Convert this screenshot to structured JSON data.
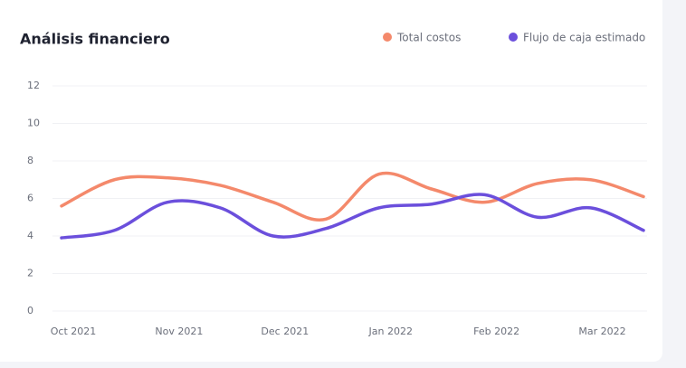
{
  "chart_data": {
    "type": "line",
    "title": "Análisis financiero",
    "categories": [
      "Oct 2021",
      null,
      "Nov 2021",
      null,
      "Dec 2021",
      null,
      "Jan 2022",
      null,
      "Feb 2022",
      null,
      "Mar 2022",
      null
    ],
    "series": [
      {
        "name": "Total costos",
        "color": "#f4896b",
        "values": [
          5.6,
          7.0,
          7.1,
          6.7,
          5.8,
          4.9,
          7.3,
          6.5,
          5.8,
          6.8,
          7.0,
          6.1
        ]
      },
      {
        "name": "Flujo de caja estimado",
        "color": "#6b4fdc",
        "values": [
          3.9,
          4.3,
          5.8,
          5.5,
          4.0,
          4.4,
          5.5,
          5.7,
          6.2,
          5.0,
          5.5,
          4.3
        ]
      }
    ],
    "ylim": [
      0,
      12
    ],
    "yticks": [
      0,
      2,
      4,
      6,
      8,
      10,
      12
    ],
    "grid": true,
    "legend": "top-right"
  }
}
